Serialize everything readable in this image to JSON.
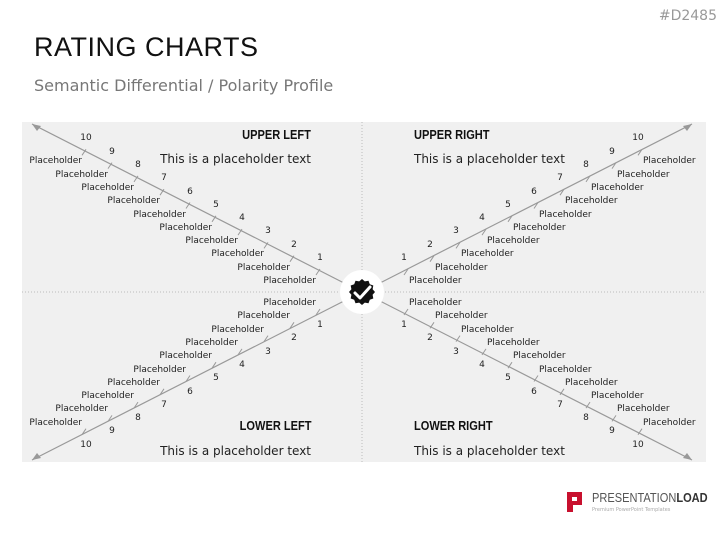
{
  "header": {
    "code": "#D2485",
    "title": "RATING CHARTS",
    "subtitle": "Semantic Differential / Polarity Profile"
  },
  "quadrants": [
    {
      "id": "upper-left",
      "title": "UPPER LEFT",
      "text": "This is a placeholder text",
      "labels": [
        "Placeholder",
        "Placeholder",
        "Placeholder",
        "Placeholder",
        "Placeholder",
        "Placeholder",
        "Placeholder",
        "Placeholder",
        "Placeholder",
        "Placeholder"
      ],
      "scale": [
        "1",
        "2",
        "3",
        "4",
        "5",
        "6",
        "7",
        "8",
        "9",
        "10"
      ]
    },
    {
      "id": "upper-right",
      "title": "UPPER RIGHT",
      "text": "This is a placeholder text",
      "labels": [
        "Placeholder",
        "Placeholder",
        "Placeholder",
        "Placeholder",
        "Placeholder",
        "Placeholder",
        "Placeholder",
        "Placeholder",
        "Placeholder",
        "Placeholder"
      ],
      "scale": [
        "1",
        "2",
        "3",
        "4",
        "5",
        "6",
        "7",
        "8",
        "9",
        "10"
      ]
    },
    {
      "id": "lower-left",
      "title": "LOWER LEFT",
      "text": "This is a placeholder text",
      "labels": [
        "Placeholder",
        "Placeholder",
        "Placeholder",
        "Placeholder",
        "Placeholder",
        "Placeholder",
        "Placeholder",
        "Placeholder",
        "Placeholder",
        "Placeholder"
      ],
      "scale": [
        "1",
        "2",
        "3",
        "4",
        "5",
        "6",
        "7",
        "8",
        "9",
        "10"
      ]
    },
    {
      "id": "lower-right",
      "title": "LOWER RIGHT",
      "text": "This is a placeholder text",
      "labels": [
        "Placeholder",
        "Placeholder",
        "Placeholder",
        "Placeholder",
        "Placeholder",
        "Placeholder",
        "Placeholder",
        "Placeholder",
        "Placeholder",
        "Placeholder"
      ],
      "scale": [
        "1",
        "2",
        "3",
        "4",
        "5",
        "6",
        "7",
        "8",
        "9",
        "10"
      ]
    }
  ],
  "center_icon": "verified-badge-check-icon",
  "logo": {
    "name_light": "PRESENTATION",
    "name_bold": "LOAD",
    "tagline": "Premium PowerPoint Templates",
    "brand_color": "#c8102e"
  },
  "colors": {
    "panel": "#f0f0f0",
    "axis": "#999999"
  }
}
